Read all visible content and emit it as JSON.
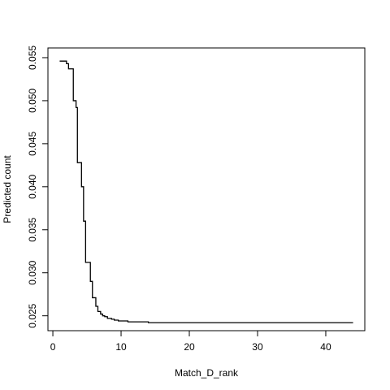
{
  "chart_data": {
    "type": "line",
    "title": "",
    "xlabel": "Match_D_rank",
    "ylabel": "Predicted count",
    "xlim": [
      -0.72,
      45.72
    ],
    "ylim": [
      0.02327,
      0.05613
    ],
    "x_ticks": [
      0,
      10,
      20,
      30,
      40
    ],
    "x_tick_labels": [
      "0",
      "10",
      "20",
      "30",
      "40"
    ],
    "y_ticks": [
      0.025,
      0.03,
      0.035,
      0.04,
      0.045,
      0.05,
      0.055
    ],
    "y_tick_labels": [
      "0.025",
      "0.030",
      "0.035",
      "0.040",
      "0.045",
      "0.050",
      "0.055"
    ],
    "grid": false,
    "line_color": "#000000",
    "series": [
      {
        "step": true,
        "x": [
          1.0,
          1.7,
          2.0,
          2.3,
          2.7,
          3.0,
          3.4,
          3.6,
          4.0,
          4.2,
          4.5,
          4.8,
          5.2,
          5.5,
          5.8,
          6.0,
          6.3,
          6.6,
          7.0,
          7.3,
          7.6,
          8.0,
          8.6,
          9.0,
          9.6,
          10.2,
          11.0,
          12.0,
          14.0,
          44.0
        ],
        "y": [
          0.0546,
          0.0546,
          0.0543,
          0.0537,
          0.0537,
          0.05,
          0.0492,
          0.0428,
          0.0428,
          0.04,
          0.036,
          0.0312,
          0.0312,
          0.029,
          0.0271,
          0.0271,
          0.0261,
          0.0255,
          0.0252,
          0.025,
          0.0249,
          0.0247,
          0.0246,
          0.0245,
          0.0244,
          0.0244,
          0.0243,
          0.0243,
          0.0242,
          0.0242
        ]
      }
    ]
  }
}
